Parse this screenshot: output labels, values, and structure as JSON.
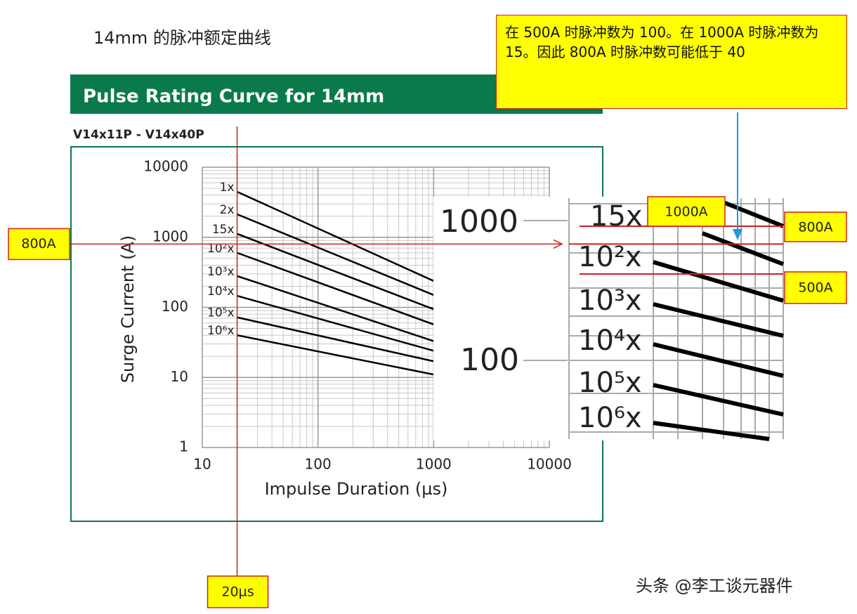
{
  "page_title": "14mm 的脉冲额定曲线",
  "chart_data": {
    "type": "line",
    "title": "Pulse Rating Curve for 14mm",
    "subtitle": "V14x11P - V14x40P",
    "x_label": "Impulse Duration (µs)",
    "y_label": "Surge Current (A)",
    "x_log": true,
    "y_log": true,
    "grid": true,
    "xlim": [
      10,
      10000
    ],
    "ylim": [
      1,
      10000
    ],
    "xticks": [
      10,
      100,
      1000,
      10000
    ],
    "yticks": [
      1,
      10,
      100,
      1000,
      10000
    ],
    "x": [
      20,
      1000
    ],
    "series": [
      {
        "name": "1x",
        "color": "#000000",
        "values": [
          4460,
          238
        ]
      },
      {
        "name": "2x",
        "color": "#000000",
        "values": [
          2130,
          150
        ]
      },
      {
        "name": "15x",
        "color": "#000000",
        "values": [
          1120,
          94
        ]
      },
      {
        "name": "10²x",
        "color": "#000000",
        "values": [
          600,
          57
        ]
      },
      {
        "name": "10³x",
        "color": "#000000",
        "values": [
          280,
          33
        ]
      },
      {
        "name": "10⁴x",
        "color": "#000000",
        "values": [
          146,
          24
        ]
      },
      {
        "name": "10⁵x",
        "color": "#000000",
        "values": [
          72,
          17
        ]
      },
      {
        "name": "10⁶x",
        "color": "#000000",
        "values": [
          40,
          11
        ]
      }
    ]
  },
  "annotations": {
    "note": "在 500A 时脉冲数为 100。在 1000A 时脉冲数为 15。因此 800A 时脉冲数可能低于 40",
    "marker_y": {
      "value": 800,
      "label": "800A"
    },
    "marker_x": {
      "value": 20,
      "label": "20µs"
    },
    "zoom_callouts": [
      "1000A",
      "500A"
    ]
  },
  "watermark": "头条 @李工谈元器件"
}
